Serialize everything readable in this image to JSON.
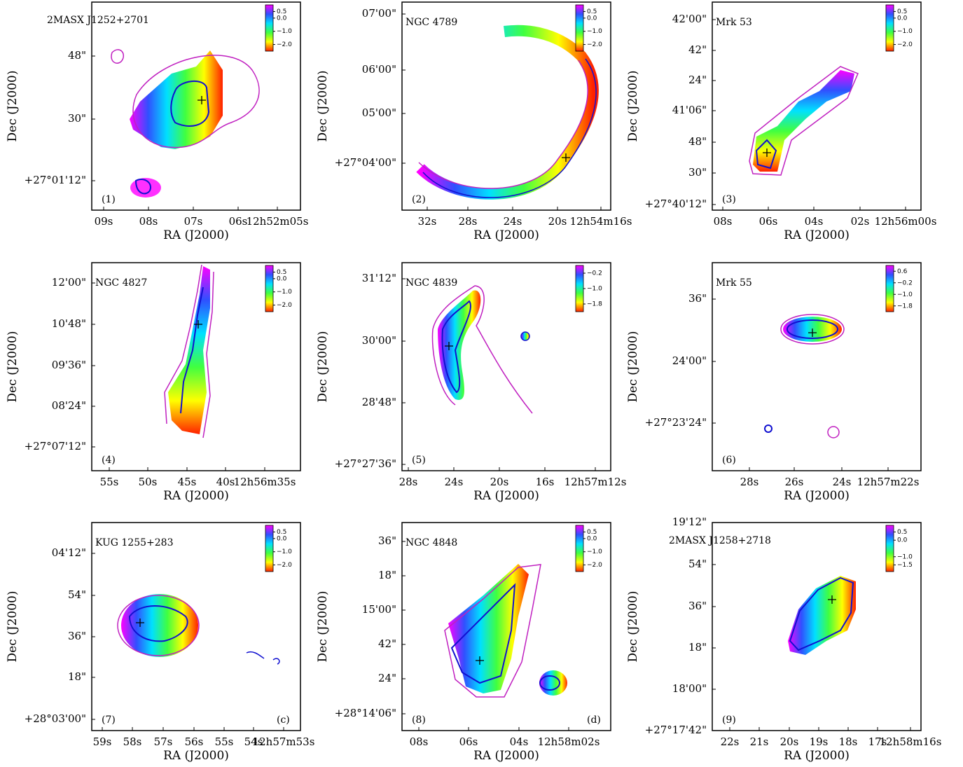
{
  "panels": [
    {
      "name": "2MASX J1252+2701",
      "number": "(1)",
      "xlabel": "RA (J2000)",
      "ylabel": "Dec (J2000)",
      "xticks": [
        "09s",
        "08s",
        "07s",
        "06s",
        "12h52m05s"
      ],
      "yticks": [
        "48\"",
        "30\"",
        "+27°01'12\""
      ],
      "colorbar": {
        "lim": [
          -2.5,
          1.0
        ],
        "ticks": [
          0.5,
          {
            "value": 0,
            "label": "0.0"
          },
          {
            "value": -1,
            "label": "−1.0"
          },
          {
            "value": -2,
            "label": "−2.0"
          }
        ]
      }
    },
    {
      "name": "NGC 4789",
      "number": "(2)",
      "xlabel": "RA (J2000)",
      "ylabel": "Dec (J2000)",
      "xticks": [
        "32s",
        "28s",
        "24s",
        "20s",
        "12h54m16s"
      ],
      "yticks": [
        "07'00\"",
        "06'00\"",
        "05'00\"",
        "+27°04'00\""
      ],
      "colorbar": {
        "lim": [
          -2.5,
          1.0
        ],
        "ticks": [
          0.5,
          {
            "value": 0,
            "label": "0.0"
          },
          {
            "value": -1,
            "label": "−1.0"
          },
          {
            "value": -2,
            "label": "−2.0"
          }
        ]
      }
    },
    {
      "name": "Mrk 53",
      "number": "(3)",
      "xlabel": "RA (J2000)",
      "ylabel": "Dec (J2000)",
      "xticks": [
        "08s",
        "06s",
        "04s",
        "02s",
        "12h56m00s"
      ],
      "yticks": [
        "42'00\"",
        "42\"",
        "24\"",
        "41'06\"",
        "48\"",
        "30\"",
        "+27°40'12\""
      ],
      "colorbar": {
        "lim": [
          -2.5,
          1.0
        ],
        "ticks": [
          0.5,
          {
            "value": 0,
            "label": "0.0"
          },
          {
            "value": -1,
            "label": "−1.0"
          },
          {
            "value": -2,
            "label": "−2.0"
          }
        ]
      }
    },
    {
      "name": "NGC 4827",
      "number": "(4)",
      "xlabel": "RA (J2000)",
      "ylabel": "Dec (J2000)",
      "xticks": [
        "55s",
        "50s",
        "45s",
        "40s",
        "12h56m35s"
      ],
      "yticks": [
        "12'00\"",
        "10'48\"",
        "09'36\"",
        "08'24\"",
        "+27°07'12\""
      ],
      "colorbar": {
        "lim": [
          -2.5,
          1.0
        ],
        "ticks": [
          0.5,
          {
            "value": 0,
            "label": "0.0"
          },
          {
            "value": -1,
            "label": "−1.0"
          },
          {
            "value": -2,
            "label": "−2.0"
          }
        ]
      }
    },
    {
      "name": "NGC 4839",
      "number": "(5)",
      "xlabel": "RA (J2000)",
      "ylabel": "Dec (J2000)",
      "xticks": [
        "28s",
        "24s",
        "20s",
        "16s",
        "12h57m12s"
      ],
      "yticks": [
        "31'12\"",
        "30'00\"",
        "28'48\"",
        "+27°27'36\""
      ],
      "colorbar": {
        "lim": [
          -2.2,
          0.2
        ],
        "ticks": [
          {
            "value": -0.2,
            "label": "−0.2"
          },
          {
            "value": -1,
            "label": "−1.0"
          },
          {
            "value": -1.8,
            "label": "−1.8"
          }
        ]
      }
    },
    {
      "name": "Mrk 55",
      "number": "(6)",
      "xlabel": "RA (J2000)",
      "ylabel": "Dec (J2000)",
      "xticks": [
        "28s",
        "26s",
        "24s",
        "12h57m22s"
      ],
      "yticks": [
        "36\"",
        "24'00\"",
        "+27°23'24\""
      ],
      "colorbar": {
        "lim": [
          -2.2,
          1.0
        ],
        "ticks": [
          0.6,
          {
            "value": -0.2,
            "label": "−0.2"
          },
          {
            "value": -1,
            "label": "−1.0"
          },
          {
            "value": -1.8,
            "label": "−1.8"
          }
        ]
      }
    },
    {
      "name": "KUG 1255+283",
      "number": "(7)",
      "tag": "(c)",
      "xlabel": "RA (J2000)",
      "ylabel": "Dec (J2000)",
      "xticks": [
        "59s",
        "58s",
        "57s",
        "56s",
        "55s",
        "54s",
        "12h57m53s"
      ],
      "yticks": [
        "04'12\"",
        "54\"",
        "36\"",
        "18\"",
        "+28°03'00\""
      ],
      "colorbar": {
        "lim": [
          -2.5,
          1.0
        ],
        "ticks": [
          0.5,
          {
            "value": 0,
            "label": "0.0"
          },
          {
            "value": -1,
            "label": "−1.0"
          },
          {
            "value": -2,
            "label": "−2.0"
          }
        ]
      }
    },
    {
      "name": "NGC 4848",
      "number": "(8)",
      "tag": "(d)",
      "xlabel": "RA (J2000)",
      "ylabel": "Dec (J2000)",
      "xticks": [
        "08s",
        "06s",
        "04s",
        "12h58m02s"
      ],
      "yticks": [
        "36\"",
        "18\"",
        "15'00\"",
        "42\"",
        "24\"",
        "+28°14'06\""
      ],
      "colorbar": {
        "lim": [
          -2.5,
          1.0
        ],
        "ticks": [
          0.5,
          {
            "value": 0,
            "label": "0.0"
          },
          {
            "value": -1,
            "label": "−1.0"
          },
          {
            "value": -2,
            "label": "−2.0"
          }
        ]
      }
    },
    {
      "name": "2MASX J1258+2718",
      "number": "(9)",
      "xlabel": "RA (J2000)",
      "ylabel": "Dec (J2000)",
      "xticks": [
        "22s",
        "21s",
        "20s",
        "19s",
        "18s",
        "17s",
        "12h58m16s"
      ],
      "yticks": [
        "19'12\"",
        "54\"",
        "36\"",
        "18\"",
        "18'00\"",
        "+27°17'42\""
      ],
      "colorbar": {
        "lim": [
          -1.9,
          0.9
        ],
        "ticks": [
          0.5,
          {
            "value": 0,
            "label": "0.0"
          },
          {
            "value": -1,
            "label": "−1.0"
          },
          {
            "value": -1.5,
            "label": "−1.5"
          }
        ]
      }
    }
  ]
}
